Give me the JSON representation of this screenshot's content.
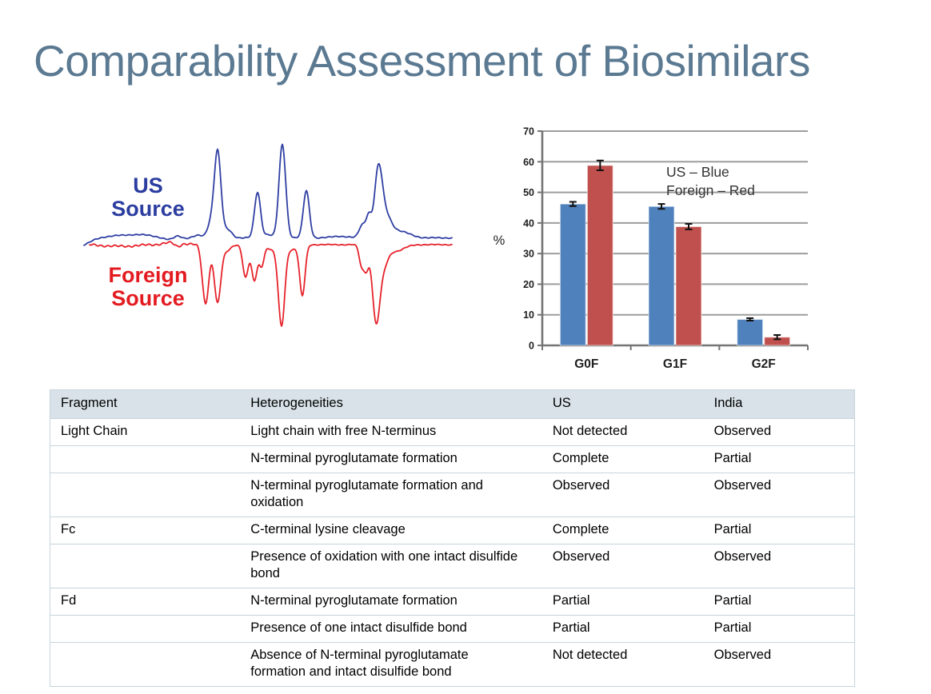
{
  "title": "Comparability Assessment of Biosimilars",
  "colors": {
    "title_text": "#5b7a92",
    "trace_blue": "#2f3fa3",
    "trace_red": "#e6232b",
    "us_label": "#2c3da0",
    "foreign_label": "#e31b21",
    "bar_blue": "#4f81bd",
    "bar_red": "#c0504d",
    "gridline": "#9d9d9d",
    "axis": "#757575",
    "table_header_bg": "#d8e2e8",
    "table_border": "#c6d4dc"
  },
  "chromatogram_labels": {
    "us": "US\nSource",
    "foreign": "Foreign\nSource"
  },
  "chart_data": [
    {
      "id": "chromatogram",
      "type": "line",
      "description": "Mirrored chromatogram overlay: US source trace (blue, peaks upward) versus Foreign source trace (red, peaks downward); matching peak pattern with extra/missing minor peaks",
      "series": [
        {
          "name": "US Source",
          "color": "#2f3fa3",
          "direction": "up",
          "baseline_y": 297.5,
          "x_range": [
            105,
            565
          ],
          "peaks": [
            [
              100,
              -10,
              12
            ],
            [
              170,
              4,
              28
            ],
            [
              215,
              -4,
              12
            ],
            [
              222,
              5,
              5
            ],
            [
              248,
              3,
              6
            ],
            [
              263,
              16,
              4
            ],
            [
              272,
              109,
              4.2
            ],
            [
              285,
              10,
              5
            ],
            [
              322,
              57,
              3.8
            ],
            [
              335,
              4,
              5
            ],
            [
              353,
              117,
              4.2
            ],
            [
              383,
              59,
              3.8
            ],
            [
              425,
              2,
              10
            ],
            [
              453,
              16,
              4
            ],
            [
              461,
              26,
              3.2
            ],
            [
              473,
              80,
              4.8
            ],
            [
              482,
              26,
              7
            ],
            [
              500,
              8,
              12
            ]
          ]
        },
        {
          "name": "Foreign Source",
          "color": "#e6232b",
          "direction": "down",
          "baseline_y": 306,
          "x_range": [
            112,
            565
          ],
          "peaks": [
            [
              150,
              2,
              20
            ],
            [
              218,
              -3,
              12
            ],
            [
              222,
              5,
              4
            ],
            [
              257,
              74,
              4
            ],
            [
              272,
              72,
              4
            ],
            [
              283,
              8,
              5
            ],
            [
              307,
              41,
              3.4
            ],
            [
              318,
              45,
              3.4
            ],
            [
              327,
              26,
              3
            ],
            [
              340,
              6,
              6
            ],
            [
              352,
              101,
              4
            ],
            [
              365,
              6,
              5
            ],
            [
              378,
              64,
              3.4
            ],
            [
              452,
              25,
              3
            ],
            [
              458,
              29,
              3
            ],
            [
              470,
              87,
              4.4
            ],
            [
              478,
              28,
              6
            ],
            [
              495,
              8,
              10
            ]
          ]
        }
      ]
    },
    {
      "id": "glycan-bar-chart",
      "type": "bar",
      "categories": [
        "G0F",
        "G1F",
        "G2F"
      ],
      "series": [
        {
          "name": "US",
          "color_name": "Blue",
          "color": "#4f81bd",
          "values": [
            46.2,
            45.4,
            8.5
          ],
          "errors": [
            0.7,
            0.8,
            0.4
          ]
        },
        {
          "name": "Foreign",
          "color_name": "Red",
          "color": "#c0504d",
          "values": [
            58.8,
            38.8,
            2.7
          ],
          "errors": [
            1.6,
            0.9,
            0.7
          ]
        }
      ],
      "ylabel": "%",
      "ylim": [
        0,
        70
      ],
      "ytick_step": 10,
      "grid": true,
      "legend_position": "inside-top",
      "legend_lines": [
        "US – Blue",
        "Foreign – Red"
      ]
    }
  ],
  "table": {
    "headers": [
      "Fragment",
      "Heterogeneities",
      "US",
      "India"
    ],
    "rows": [
      [
        "Light Chain",
        "Light chain with free N-terminus",
        "Not detected",
        "Observed"
      ],
      [
        "",
        "N-terminal pyroglutamate formation",
        "Complete",
        "Partial"
      ],
      [
        "",
        "N-terminal pyroglutamate formation and oxidation",
        "Observed",
        "Observed"
      ],
      [
        "Fc",
        "C-terminal lysine cleavage",
        "Complete",
        "Partial"
      ],
      [
        "",
        "Presence of oxidation with one intact disulfide bond",
        "Observed",
        "Observed"
      ],
      [
        "Fd",
        "N-terminal pyroglutamate formation",
        "Partial",
        "Partial"
      ],
      [
        "",
        "Presence of one intact disulfide bond",
        "Partial",
        "Partial"
      ],
      [
        "",
        "Absence of N-terminal pyroglutamate formation and intact disulfide bond",
        "Not detected",
        "Observed"
      ]
    ]
  }
}
